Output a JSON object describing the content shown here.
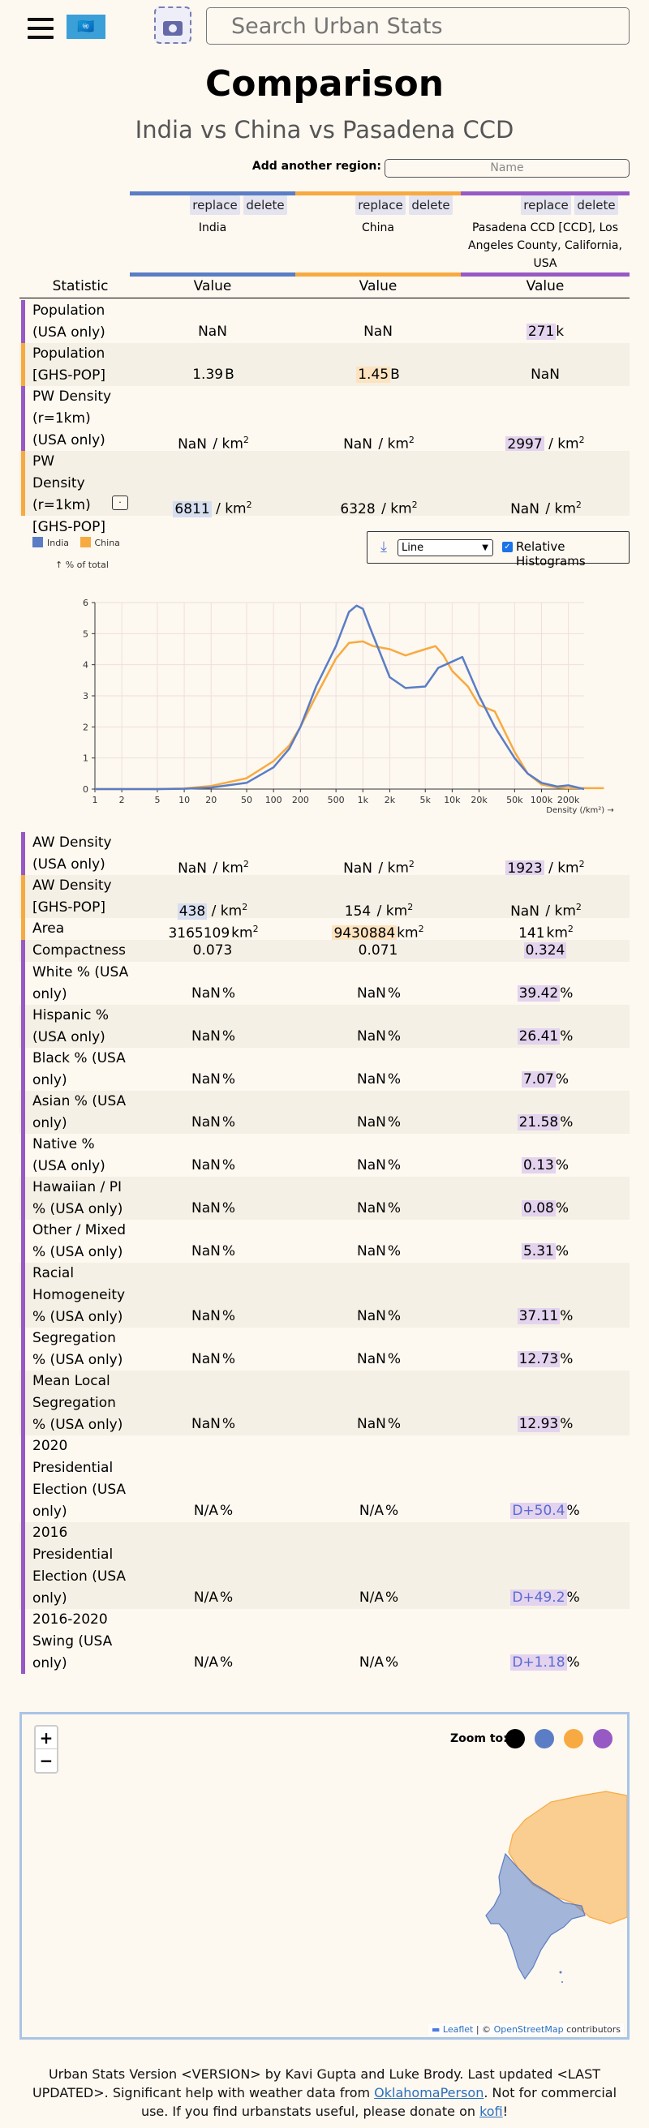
{
  "header": {
    "search_placeholder": "Search Urban Stats",
    "flag_glyph": "🇺🇳"
  },
  "page": {
    "title": "Comparison",
    "subtitle": "India vs China vs Pasadena CCD"
  },
  "add_region": {
    "label": "Add another region:",
    "placeholder": "Name"
  },
  "colors": {
    "india": "#5a7dc5",
    "china": "#f7aa41",
    "pasadena": "#975ac5",
    "india_hl": "#d6deef",
    "china_hl": "#fde3bf",
    "pasadena_hl": "#e3d3ee",
    "zoom_all": "#000000"
  },
  "regions": [
    {
      "name": "India",
      "replace": "replace",
      "delete": "delete"
    },
    {
      "name": "China",
      "replace": "replace",
      "delete": "delete"
    },
    {
      "name": "Pasadena CCD [CCD], Los Angeles County, California, USA",
      "replace": "replace",
      "delete": "delete"
    }
  ],
  "table": {
    "col_statistic": "Statistic",
    "col_value": "Value",
    "rows": [
      {
        "stat": "Population (USA only)",
        "v": [
          "NaN",
          "NaN",
          "271"
        ],
        "u": [
          "",
          "",
          "k"
        ],
        "hl": 2
      },
      {
        "stat": "Population [GHS-POP]",
        "v": [
          "1.39",
          "1.45",
          "NaN"
        ],
        "u": [
          "B",
          "B",
          ""
        ],
        "hl": 1
      },
      {
        "stat": "PW Density (r=1km) (USA only)",
        "v": [
          "NaN",
          "NaN",
          "2997"
        ],
        "u": [
          "/ km",
          "/ km",
          "/ km"
        ],
        "hl": 2
      },
      {
        "stat": "PW Density (r=1km) [GHS-POP]",
        "v": [
          "6811",
          "6328",
          "NaN"
        ],
        "u": [
          "/ km",
          "/ km",
          "/ km"
        ],
        "hl": 0,
        "info": "·"
      },
      {
        "stat": "AW Density (USA only)",
        "v": [
          "NaN",
          "NaN",
          "1923"
        ],
        "u": [
          "/ km",
          "/ km",
          "/ km"
        ],
        "hl": 2
      },
      {
        "stat": "AW Density [GHS-POP]",
        "v": [
          "438",
          "154",
          "NaN"
        ],
        "u": [
          "/ km",
          "/ km",
          "/ km"
        ],
        "hl": 0
      },
      {
        "stat": "Area",
        "v": [
          "3165109",
          "9430884",
          "141"
        ],
        "u": [
          "km",
          "km",
          "km"
        ],
        "hl": 1
      },
      {
        "stat": "Compactness",
        "v": [
          "0.073",
          "0.071",
          "0.324"
        ],
        "u": [
          "",
          "",
          ""
        ],
        "hl": 2
      },
      {
        "stat": "White % (USA only)",
        "v": [
          "NaN",
          "NaN",
          "39.42"
        ],
        "u": [
          "%",
          "%",
          "%"
        ],
        "hl": 2
      },
      {
        "stat": "Hispanic % (USA only)",
        "v": [
          "NaN",
          "NaN",
          "26.41"
        ],
        "u": [
          "%",
          "%",
          "%"
        ],
        "hl": 2
      },
      {
        "stat": "Black % (USA only)",
        "v": [
          "NaN",
          "NaN",
          "7.07"
        ],
        "u": [
          "%",
          "%",
          "%"
        ],
        "hl": 2
      },
      {
        "stat": "Asian % (USA only)",
        "v": [
          "NaN",
          "NaN",
          "21.58"
        ],
        "u": [
          "%",
          "%",
          "%"
        ],
        "hl": 2
      },
      {
        "stat": "Native % (USA only)",
        "v": [
          "NaN",
          "NaN",
          "0.13"
        ],
        "u": [
          "%",
          "%",
          "%"
        ],
        "hl": 2
      },
      {
        "stat": "Hawaiian / PI % (USA only)",
        "v": [
          "NaN",
          "NaN",
          "0.08"
        ],
        "u": [
          "%",
          "%",
          "%"
        ],
        "hl": 2
      },
      {
        "stat": "Other / Mixed % (USA only)",
        "v": [
          "NaN",
          "NaN",
          "5.31"
        ],
        "u": [
          "%",
          "%",
          "%"
        ],
        "hl": 2
      },
      {
        "stat": "Racial Homogeneity % (USA only)",
        "v": [
          "NaN",
          "NaN",
          "37.11"
        ],
        "u": [
          "%",
          "%",
          "%"
        ],
        "hl": 2
      },
      {
        "stat": "Segregation % (USA only)",
        "v": [
          "NaN",
          "NaN",
          "12.73"
        ],
        "u": [
          "%",
          "%",
          "%"
        ],
        "hl": 2
      },
      {
        "stat": "Mean Local Segregation % (USA only)",
        "v": [
          "NaN",
          "NaN",
          "12.93"
        ],
        "u": [
          "%",
          "%",
          "%"
        ],
        "hl": 2
      },
      {
        "stat": "2020 Presidential Election (USA only)",
        "v": [
          "N/A",
          "N/A",
          "D+50.4"
        ],
        "u": [
          "%",
          "%",
          "%"
        ],
        "hl": 2,
        "party": true
      },
      {
        "stat": "2016 Presidential Election (USA only)",
        "v": [
          "N/A",
          "N/A",
          "D+49.2"
        ],
        "u": [
          "%",
          "%",
          "%"
        ],
        "hl": 2,
        "party": true
      },
      {
        "stat": "2016-2020 Swing (USA only)",
        "v": [
          "N/A",
          "N/A",
          "D+1.18"
        ],
        "u": [
          "%",
          "%",
          "%"
        ],
        "hl": 2,
        "party": true
      }
    ]
  },
  "chart_controls": {
    "select_value": "Line",
    "relative_label": "Relative Histograms",
    "relative_checked": true
  },
  "chart_data": {
    "type": "line",
    "x": [
      "1",
      "2",
      "5",
      "10",
      "20",
      "50",
      "100",
      "200",
      "500",
      "1k",
      "2k",
      "5k",
      "10k",
      "20k",
      "50k",
      "100k",
      "200k"
    ],
    "xlabel": "Density (/km²) →",
    "ylabel": "↑ % of total",
    "ylim": [
      0,
      6
    ],
    "yticks": [
      0,
      1,
      2,
      3,
      4,
      5,
      6
    ],
    "log_x": true,
    "grid": true,
    "legend_position": "top-left",
    "series": [
      {
        "name": "India",
        "color": "#5a7dc5",
        "points": [
          [
            1,
            0
          ],
          [
            5,
            0
          ],
          [
            10,
            0.01
          ],
          [
            20,
            0.05
          ],
          [
            50,
            0.2
          ],
          [
            100,
            0.7
          ],
          [
            150,
            1.3
          ],
          [
            200,
            2.0
          ],
          [
            300,
            3.3
          ],
          [
            500,
            4.6
          ],
          [
            700,
            5.7
          ],
          [
            850,
            5.9
          ],
          [
            1000,
            5.8
          ],
          [
            1200,
            5.2
          ],
          [
            1500,
            4.5
          ],
          [
            2000,
            3.6
          ],
          [
            3000,
            3.25
          ],
          [
            5000,
            3.3
          ],
          [
            7000,
            3.9
          ],
          [
            10000,
            4.1
          ],
          [
            13000,
            4.25
          ],
          [
            20000,
            3.0
          ],
          [
            30000,
            2.0
          ],
          [
            50000,
            1.0
          ],
          [
            70000,
            0.5
          ],
          [
            100000,
            0.2
          ],
          [
            150000,
            0.08
          ],
          [
            200000,
            0.12
          ],
          [
            300000,
            0.0
          ]
        ]
      },
      {
        "name": "China",
        "color": "#f7aa41",
        "points": [
          [
            1,
            0
          ],
          [
            5,
            0
          ],
          [
            10,
            0.02
          ],
          [
            20,
            0.1
          ],
          [
            50,
            0.35
          ],
          [
            100,
            0.9
          ],
          [
            150,
            1.4
          ],
          [
            200,
            2.0
          ],
          [
            300,
            3.0
          ],
          [
            500,
            4.2
          ],
          [
            700,
            4.7
          ],
          [
            1000,
            4.75
          ],
          [
            1300,
            4.6
          ],
          [
            2000,
            4.5
          ],
          [
            3000,
            4.3
          ],
          [
            5000,
            4.5
          ],
          [
            6500,
            4.6
          ],
          [
            8000,
            4.3
          ],
          [
            10000,
            3.8
          ],
          [
            15000,
            3.3
          ],
          [
            20000,
            2.7
          ],
          [
            30000,
            2.5
          ],
          [
            50000,
            1.2
          ],
          [
            70000,
            0.5
          ],
          [
            100000,
            0.15
          ],
          [
            150000,
            0.05
          ],
          [
            200000,
            0.03
          ],
          [
            500000,
            0.03
          ]
        ]
      }
    ]
  },
  "map": {
    "zoom_in": "+",
    "zoom_out": "−",
    "zoom_to_label": "Zoom to:",
    "attribution_leaflet": "Leaflet",
    "attribution_osm": "OpenStreetMap",
    "attribution_sep": "| ©",
    "attribution_tail": "contributors",
    "leaflet_glyph": "▬"
  },
  "footer": {
    "part1": "Urban Stats Version <VERSION> by Kavi Gupta and Luke Brody. Last updated <LAST UPDATED>. Significant help with weather data from ",
    "link1": "OklahomaPerson",
    "part2": ". Not for commercial use. If you find urbanstats useful, please donate on ",
    "link2": "kofi",
    "part3": "!"
  }
}
